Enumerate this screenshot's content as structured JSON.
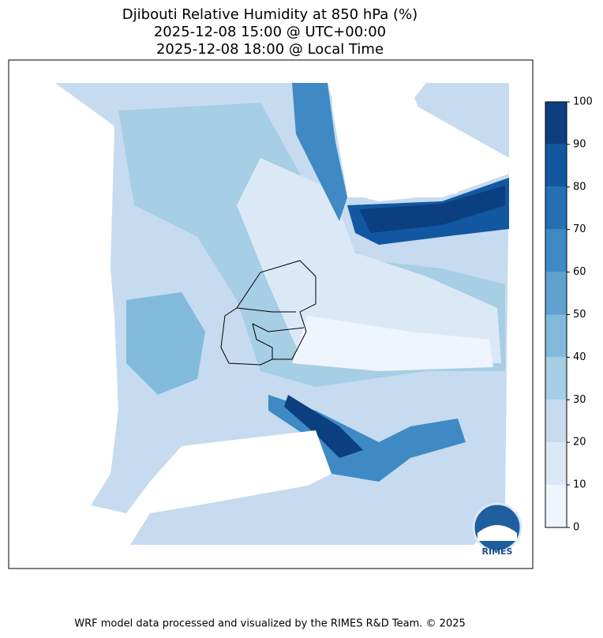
{
  "title": [
    "Djibouti Relative Humidity at 850 hPa (%)",
    "2025-12-08 15:00 @ UTC+00:00",
    "2025-12-08 18:00 @ Local Time"
  ],
  "colorbar": {
    "lim": [
      0,
      100
    ],
    "ticks": [
      0,
      10,
      20,
      30,
      40,
      50,
      60,
      70,
      80,
      90,
      100
    ],
    "colors": [
      "#eef5fc",
      "#dbe9f6",
      "#c6dbef",
      "#a6cee4",
      "#82badb",
      "#5fa2cf",
      "#3f8ac4",
      "#2470b2",
      "#1257a0",
      "#0b3f80"
    ]
  },
  "logo": "RIMES",
  "footer": "WRF model data processed and visualized by the RIMES R&D Team. © 2025"
}
